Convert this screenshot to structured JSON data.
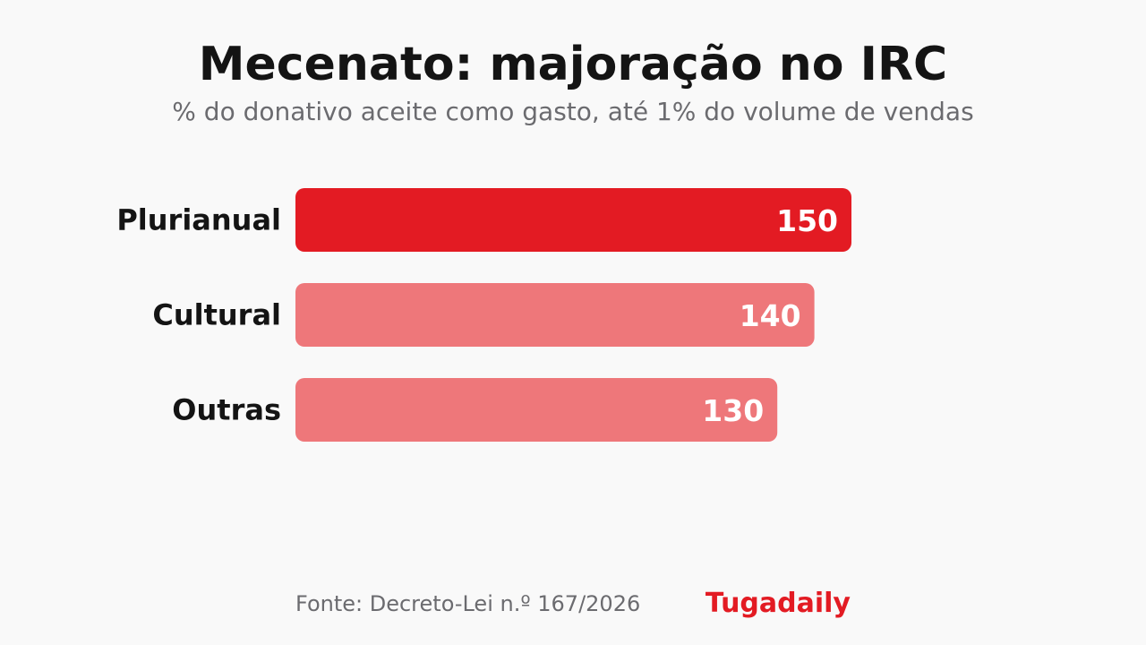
{
  "chart_data": {
    "type": "bar",
    "orientation": "horizontal",
    "title": "Mecenato: majoração no IRC",
    "subtitle": "% do donativo aceite como gasto, até 1% do volume de vendas",
    "categories": [
      "Plurianual",
      "Cultural",
      "Outras"
    ],
    "values": [
      150,
      140,
      130
    ],
    "data_labels": [
      "150",
      "140",
      "130"
    ],
    "xlim": [
      0,
      150
    ],
    "grid": false,
    "legend": "none",
    "colors": {
      "highlight": "#e31b23",
      "default": "#ee777a"
    }
  },
  "footer": {
    "source": "Fonte: Decreto-Lei n.º 167/2026",
    "brand": "Tugadaily"
  }
}
